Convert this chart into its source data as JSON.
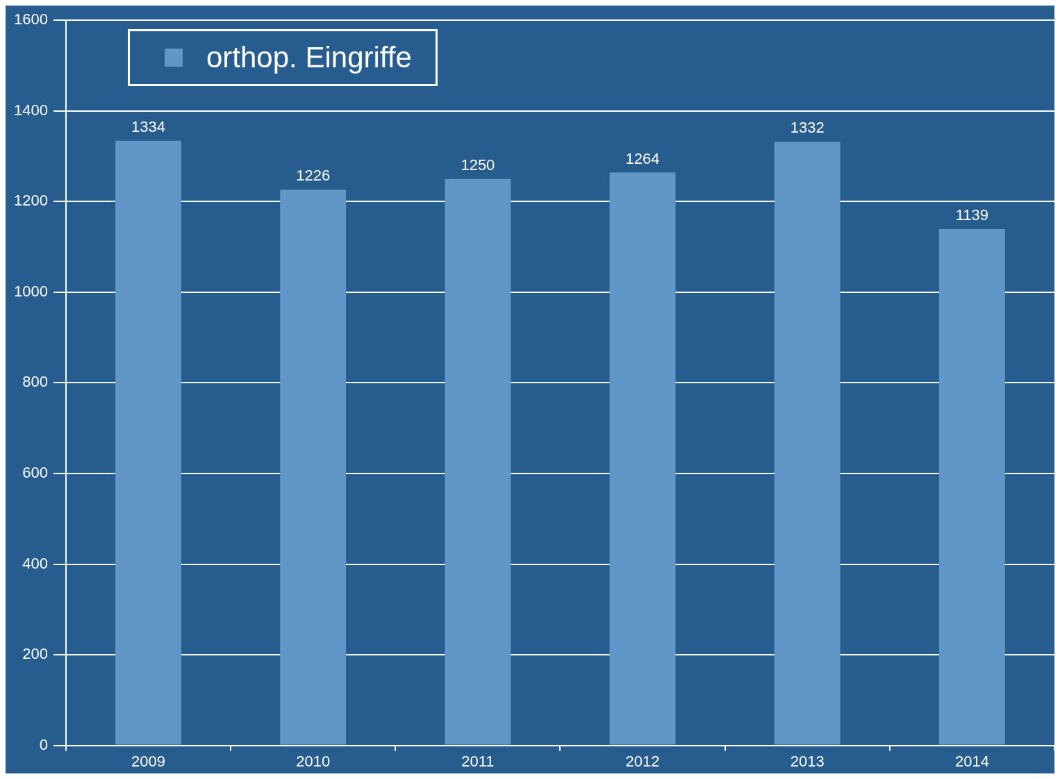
{
  "chart_data": {
    "type": "bar",
    "categories": [
      "2009",
      "2010",
      "2011",
      "2012",
      "2013",
      "2014"
    ],
    "series": [
      {
        "name": "orthop. Eingriffe",
        "color": "#6196c8",
        "values": [
          1334,
          1226,
          1250,
          1264,
          1332,
          1139
        ]
      }
    ],
    "ylim": [
      0,
      1600
    ],
    "yticks": [
      0,
      200,
      400,
      600,
      800,
      1000,
      1200,
      1400,
      1600
    ],
    "grid": "y",
    "legend": "top left",
    "data_labels": true
  }
}
